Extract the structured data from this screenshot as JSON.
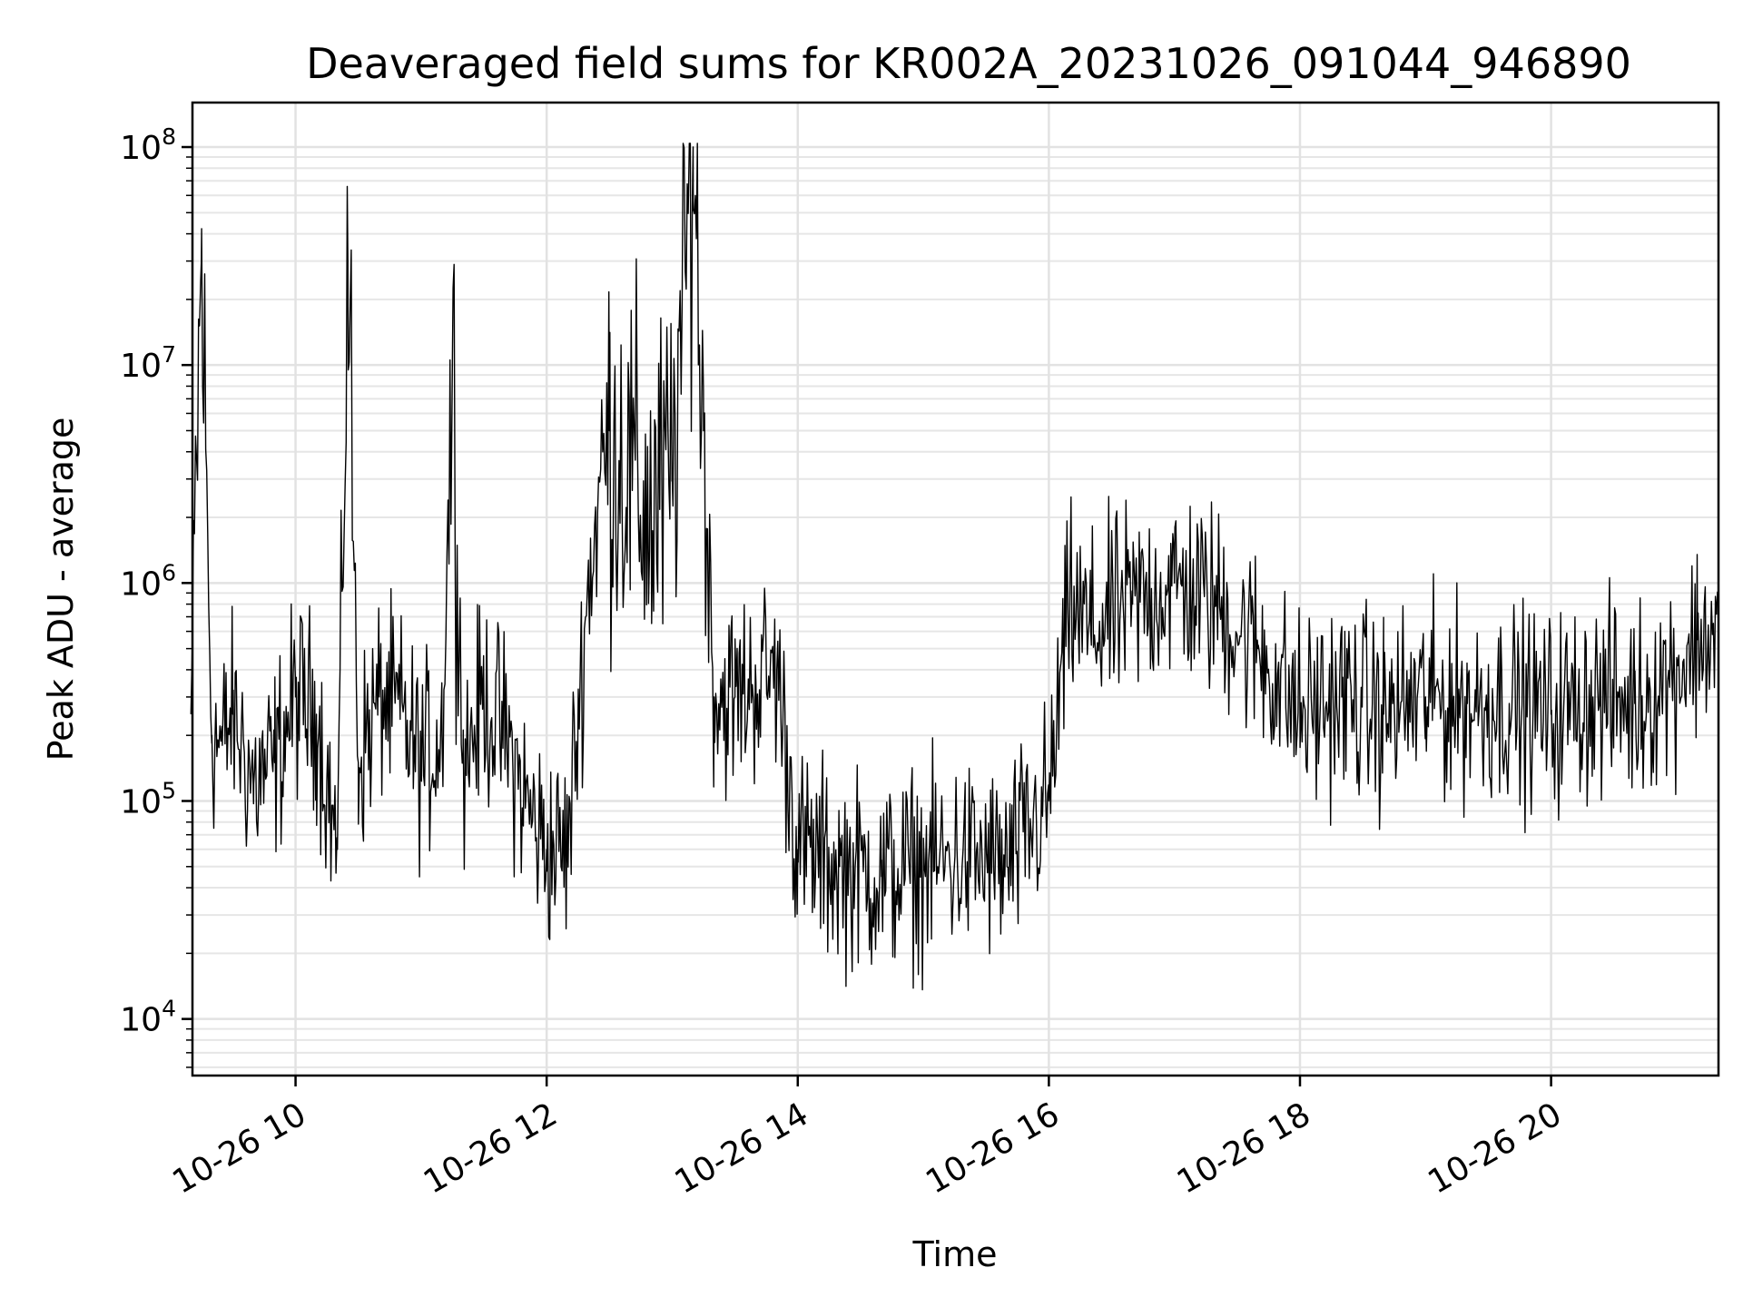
{
  "chart_data": {
    "type": "line",
    "title": "Deaveraged field sums for KR002A_20231026_091044_946890",
    "xlabel": "Time",
    "ylabel": "Peak ADU - average",
    "yscale": "log",
    "ylim": [
      5500,
      160000000
    ],
    "xlim": [
      "2023-10-26 09:10:44",
      "2023-10-26 21:20:00"
    ],
    "grid": true,
    "line_color": "#000000",
    "x_ticks": [
      {
        "value": "2023-10-26 10:00",
        "label": "10-26 10"
      },
      {
        "value": "2023-10-26 12:00",
        "label": "10-26 12"
      },
      {
        "value": "2023-10-26 14:00",
        "label": "10-26 14"
      },
      {
        "value": "2023-10-26 16:00",
        "label": "10-26 16"
      },
      {
        "value": "2023-10-26 18:00",
        "label": "10-26 18"
      },
      {
        "value": "2023-10-26 20:00",
        "label": "10-26 20"
      }
    ],
    "y_ticks": [
      {
        "value": 10000,
        "base": "10",
        "exp": "4"
      },
      {
        "value": 100000,
        "base": "10",
        "exp": "5"
      },
      {
        "value": 1000000,
        "base": "10",
        "exp": "6"
      },
      {
        "value": 10000000,
        "base": "10",
        "exp": "7"
      },
      {
        "value": 100000000,
        "base": "10",
        "exp": "8"
      }
    ],
    "series": [
      {
        "x": [
          "2023-10-26 09:10",
          "2023-10-26 09:15",
          "2023-10-26 09:20",
          "2023-10-26 09:25",
          "2023-10-26 09:30",
          "2023-10-26 09:40",
          "2023-10-26 09:50",
          "2023-10-26 10:00",
          "2023-10-26 10:10",
          "2023-10-26 10:20",
          "2023-10-26 10:25",
          "2023-10-26 10:30",
          "2023-10-26 10:40",
          "2023-10-26 10:50",
          "2023-10-26 11:00",
          "2023-10-26 11:10",
          "2023-10-26 11:15",
          "2023-10-26 11:20",
          "2023-10-26 11:30",
          "2023-10-26 11:40",
          "2023-10-26 11:50",
          "2023-10-26 12:00",
          "2023-10-26 12:10",
          "2023-10-26 12:20",
          "2023-10-26 12:30",
          "2023-10-26 12:40",
          "2023-10-26 12:50",
          "2023-10-26 13:00",
          "2023-10-26 13:10",
          "2023-10-26 13:15",
          "2023-10-26 13:20",
          "2023-10-26 13:30",
          "2023-10-26 13:40",
          "2023-10-26 13:50",
          "2023-10-26 14:00",
          "2023-10-26 14:20",
          "2023-10-26 14:40",
          "2023-10-26 15:00",
          "2023-10-26 15:20",
          "2023-10-26 15:40",
          "2023-10-26 16:00",
          "2023-10-26 16:10",
          "2023-10-26 16:20",
          "2023-10-26 16:40",
          "2023-10-26 17:00",
          "2023-10-26 17:20",
          "2023-10-26 17:40",
          "2023-10-26 18:00",
          "2023-10-26 18:20",
          "2023-10-26 18:40",
          "2023-10-26 19:00",
          "2023-10-26 19:20",
          "2023-10-26 19:40",
          "2023-10-26 20:00",
          "2023-10-26 20:20",
          "2023-10-26 20:40",
          "2023-10-26 21:00",
          "2023-10-26 21:10",
          "2023-10-26 21:20"
        ],
        "y": [
          250000,
          30000000,
          200000,
          180000,
          250000,
          120000,
          150000,
          300000,
          250000,
          60000,
          30000000,
          150000,
          300000,
          250000,
          150000,
          200000,
          11000000,
          150000,
          300000,
          200000,
          100000,
          60000,
          60000,
          1000000,
          5000000,
          3000000,
          2000000,
          3000000,
          100000000,
          5000000,
          300000,
          300000,
          350000,
          400000,
          60000,
          50000,
          45000,
          50000,
          55000,
          50000,
          100000,
          800000,
          600000,
          800000,
          1000000,
          800000,
          500000,
          250000,
          300000,
          250000,
          300000,
          280000,
          280000,
          250000,
          300000,
          280000,
          400000,
          550000,
          600000
        ]
      }
    ]
  }
}
